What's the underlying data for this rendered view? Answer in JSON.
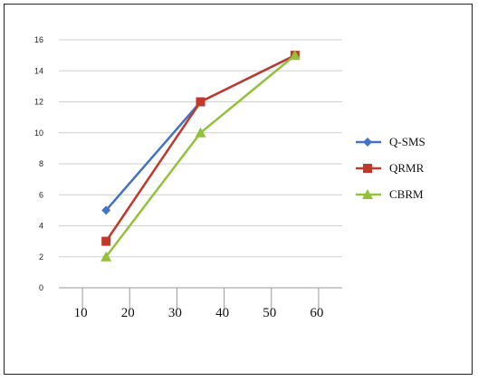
{
  "chart_data": {
    "type": "line",
    "title": "",
    "xlabel": "",
    "ylabel": "",
    "xlim": [
      5,
      65
    ],
    "ylim": [
      0,
      16
    ],
    "x_ticks": [
      "10",
      "20",
      "30",
      "40",
      "50",
      "60"
    ],
    "y_ticks": [
      "0",
      "2",
      "4",
      "6",
      "8",
      "10",
      "12",
      "14",
      "16"
    ],
    "grid": "horizontal",
    "legend_position": "right",
    "x": [
      15,
      35,
      55
    ],
    "series": [
      {
        "name": "Q-SMS",
        "values": [
          5,
          12,
          15
        ],
        "color": "#4472C4",
        "marker": "diamond"
      },
      {
        "name": "QRMR",
        "values": [
          3,
          12,
          15
        ],
        "color": "#C0392B",
        "marker": "square"
      },
      {
        "name": "CBRM",
        "values": [
          2,
          10,
          15
        ],
        "color": "#92C13A",
        "marker": "triangle"
      }
    ]
  }
}
